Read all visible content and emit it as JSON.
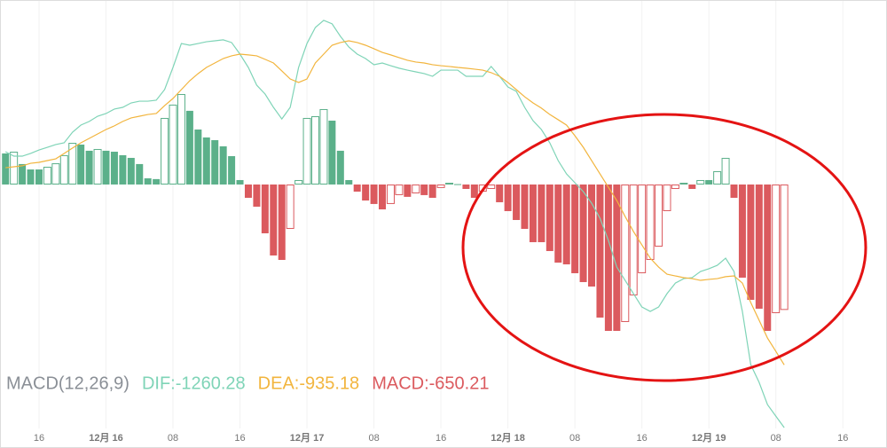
{
  "chart_data": {
    "type": "macd",
    "indicator": "MACD(12,26,9)",
    "categories": [
      null,
      null,
      null,
      null,
      "16",
      null,
      null,
      null,
      null,
      null,
      null,
      null,
      "12月 16",
      null,
      null,
      null,
      null,
      null,
      null,
      null,
      "08",
      null,
      null,
      null,
      null,
      null,
      null,
      null,
      "16",
      null,
      null,
      null,
      null,
      null,
      null,
      null,
      "12月 17",
      null,
      null,
      null,
      null,
      null,
      null,
      null,
      "08",
      null,
      null,
      null,
      null,
      null,
      null,
      null,
      "16",
      null,
      null,
      null,
      null,
      null,
      null,
      null,
      "12月 18",
      null,
      null,
      null,
      null,
      null,
      null,
      null,
      "08",
      null,
      null,
      null,
      null,
      null,
      null,
      null,
      "16",
      null,
      null,
      null,
      null,
      null,
      null,
      null,
      "12月 19",
      null,
      null,
      null,
      null,
      null,
      null,
      null,
      "08",
      null,
      null,
      null,
      null,
      null,
      null,
      null,
      "16"
    ],
    "series": [
      {
        "name": "DIF:-1260.28",
        "kind": "line",
        "color": "#7fd4b7",
        "values": [
          170,
          147,
          147,
          161,
          179,
          193,
          207,
          216,
          271,
          308,
          327,
          354,
          368,
          391,
          400,
          423,
          432,
          432,
          437,
          492,
          607,
          731,
          722,
          731,
          740,
          745,
          750,
          736,
          676,
          607,
          515,
          469,
          400,
          340,
          400,
          607,
          731,
          814,
          851,
          833,
          768,
          713,
          676,
          653,
          621,
          630,
          616,
          603,
          593,
          584,
          575,
          561,
          593,
          593,
          593,
          561,
          561,
          561,
          612,
          561,
          506,
          483,
          400,
          331,
          285,
          216,
          124,
          55,
          9,
          -37,
          -97,
          -175,
          -290,
          -428,
          -497,
          -566,
          -635,
          -658,
          -635,
          -566,
          -511,
          -488,
          -483,
          -451,
          -437,
          -419,
          -382,
          -451,
          -658,
          -934,
          -1026,
          -1141,
          -1201,
          -1260.28,
          null,
          null,
          null,
          null,
          null,
          null,
          null
        ]
      },
      {
        "name": "DEA:-935.18",
        "kind": "line",
        "color": "#f2b53e",
        "values": [
          87,
          92,
          97,
          110,
          115,
          124,
          133,
          161,
          189,
          216,
          239,
          262,
          285,
          304,
          327,
          345,
          354,
          363,
          368,
          409,
          446,
          492,
          538,
          575,
          607,
          630,
          653,
          667,
          676,
          672,
          667,
          649,
          630,
          589,
          547,
          529,
          547,
          630,
          676,
          722,
          736,
          745,
          736,
          722,
          704,
          685,
          672,
          658,
          644,
          635,
          630,
          621,
          616,
          612,
          607,
          603,
          598,
          593,
          580,
          561,
          529,
          492,
          455,
          423,
          396,
          363,
          336,
          308,
          253,
          193,
          124,
          55,
          -14,
          -83,
          -166,
          -244,
          -313,
          -382,
          -428,
          -465,
          -474,
          -483,
          -488,
          -497,
          -492,
          -488,
          -478,
          -474,
          -511,
          -612,
          -704,
          -796,
          -865,
          -935.18,
          null,
          null,
          null,
          null,
          null,
          null,
          null
        ]
      },
      {
        "name": "MACD:-650.21",
        "kind": "bar",
        "color": "#db5a5e",
        "up_color": "#5bb08a",
        "values": [
          161,
          170,
          106,
          78,
          78,
          92,
          110,
          152,
          216,
          207,
          175,
          184,
          175,
          170,
          152,
          138,
          106,
          32,
          28,
          345,
          414,
          469,
          382,
          285,
          244,
          230,
          198,
          147,
          23,
          -69,
          -115,
          -253,
          -368,
          -391,
          -230,
          23,
          345,
          354,
          391,
          331,
          175,
          23,
          -37,
          -83,
          -101,
          -129,
          -101,
          -55,
          -64,
          -46,
          -55,
          -69,
          -18,
          9,
          2,
          -23,
          -69,
          -37,
          -23,
          -92,
          -138,
          -184,
          -230,
          -299,
          -299,
          -345,
          -405,
          -414,
          -460,
          -506,
          -529,
          -690,
          -759,
          -759,
          -713,
          -575,
          -460,
          -391,
          -322,
          -138,
          -23,
          9,
          -23,
          23,
          23,
          69,
          138,
          -69,
          -483,
          -598,
          -644,
          -759,
          -667,
          -650.21,
          null,
          null,
          null,
          null,
          null,
          null,
          null
        ]
      }
    ],
    "ylim": [
      -1265,
      952
    ],
    "grid": true,
    "legend": "bottom-left"
  }
}
